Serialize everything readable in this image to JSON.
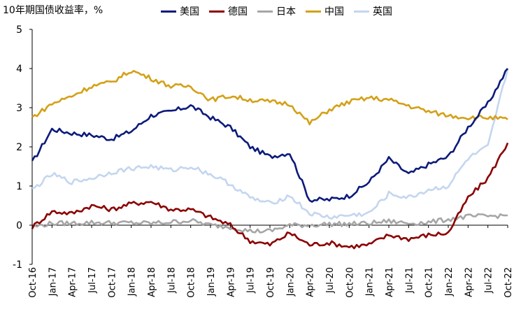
{
  "chart_data": {
    "type": "line",
    "title": "10年期国债收益率，%",
    "xlabel": "",
    "ylabel": "",
    "ylim": [
      -1,
      5
    ],
    "yticks": [
      "5",
      "4",
      "3",
      "2",
      "1",
      "0",
      "-1"
    ],
    "categories": [
      "Oct-16",
      "Jan-17",
      "Apr-17",
      "Jul-17",
      "Oct-17",
      "Jan-18",
      "Apr-18",
      "Jul-18",
      "Oct-18",
      "Jan-19",
      "Apr-19",
      "Jul-19",
      "Oct-19",
      "Jan-20",
      "Apr-20",
      "Jul-20",
      "Oct-20",
      "Jan-21",
      "Apr-21",
      "Jul-21",
      "Oct-21",
      "Jan-22",
      "Apr-22",
      "Jul-22",
      "Oct-22"
    ],
    "series": [
      {
        "name": "美国",
        "color": "#0b1a7a",
        "values": [
          1.6,
          2.45,
          2.35,
          2.3,
          2.2,
          2.4,
          2.8,
          2.9,
          3.05,
          2.75,
          2.5,
          2.0,
          1.75,
          1.85,
          0.65,
          0.65,
          0.75,
          1.1,
          1.7,
          1.3,
          1.55,
          1.75,
          2.5,
          3.1,
          4.0
        ]
      },
      {
        "name": "德国",
        "color": "#8b0000",
        "values": [
          -0.05,
          0.35,
          0.3,
          0.5,
          0.4,
          0.55,
          0.6,
          0.4,
          0.4,
          0.2,
          0.0,
          -0.4,
          -0.5,
          -0.2,
          -0.5,
          -0.45,
          -0.55,
          -0.5,
          -0.25,
          -0.35,
          -0.25,
          -0.2,
          0.7,
          1.2,
          2.1
        ]
      },
      {
        "name": "日本",
        "color": "#a6a6a6",
        "values": [
          -0.05,
          0.05,
          0.05,
          0.07,
          0.06,
          0.06,
          0.05,
          0.08,
          0.12,
          0.0,
          -0.05,
          -0.15,
          -0.15,
          0.0,
          0.0,
          0.03,
          0.03,
          0.05,
          0.1,
          0.05,
          0.07,
          0.15,
          0.22,
          0.23,
          0.25
        ]
      },
      {
        "name": "中国",
        "color": "#d4a017",
        "values": [
          2.75,
          3.1,
          3.3,
          3.55,
          3.65,
          3.95,
          3.75,
          3.55,
          3.55,
          3.2,
          3.3,
          3.2,
          3.15,
          3.1,
          2.6,
          2.95,
          3.15,
          3.25,
          3.2,
          3.05,
          2.9,
          2.8,
          2.75,
          2.75,
          2.7
        ]
      },
      {
        "name": "英国",
        "color": "#c4d6ef",
        "values": [
          0.9,
          1.3,
          1.1,
          1.2,
          1.35,
          1.45,
          1.5,
          1.4,
          1.5,
          1.3,
          1.05,
          0.7,
          0.55,
          0.75,
          0.3,
          0.2,
          0.25,
          0.3,
          0.8,
          0.7,
          0.9,
          1.0,
          1.7,
          2.0,
          4.0
        ]
      }
    ]
  }
}
